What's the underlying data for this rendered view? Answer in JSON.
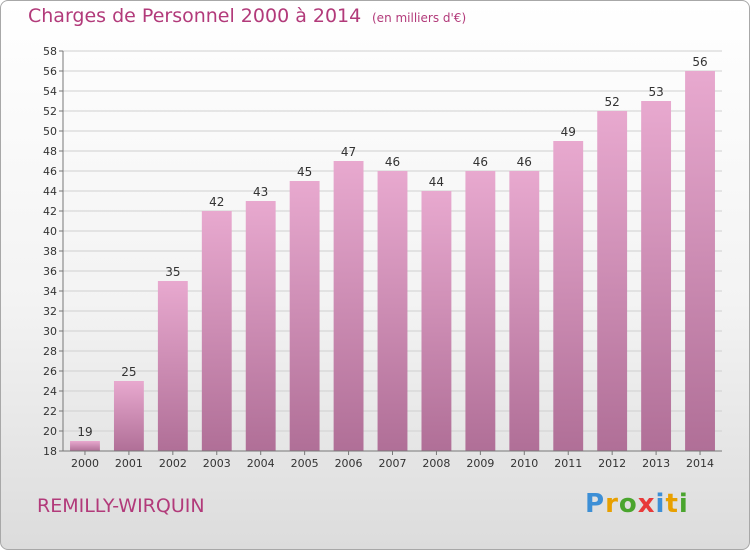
{
  "chart_data": {
    "type": "bar",
    "title": "Charges de Personnel 2000 à 2014",
    "subtitle": "(en milliers d'€)",
    "categories": [
      "2000",
      "2001",
      "2002",
      "2003",
      "2004",
      "2005",
      "2006",
      "2007",
      "2008",
      "2009",
      "2010",
      "2011",
      "2012",
      "2013",
      "2014"
    ],
    "values": [
      19,
      25,
      35,
      42,
      43,
      45,
      47,
      46,
      44,
      46,
      46,
      49,
      52,
      53,
      56
    ],
    "data_labels": [
      "19",
      "25",
      "35",
      "42",
      "43",
      "45",
      "47",
      "46",
      "44",
      "46",
      "46",
      "49",
      "52",
      "53",
      "56"
    ],
    "ylim": [
      18,
      58
    ],
    "yticks": [
      "18",
      "20",
      "22",
      "24",
      "26",
      "28",
      "30",
      "32",
      "34",
      "36",
      "38",
      "40",
      "42",
      "44",
      "46",
      "48",
      "50",
      "52",
      "54",
      "56",
      "58"
    ],
    "xlabel": "",
    "ylabel": "",
    "grid": "horizontal",
    "bar_color": "#d67ab0"
  },
  "commune": "REMILLY-WIRQUIN",
  "logo": {
    "letters": [
      "P",
      "r",
      "o",
      "x",
      "i",
      "t",
      "i"
    ],
    "colors": [
      "#3d8fd6",
      "#e8a000",
      "#4aa52e",
      "#e83a3a",
      "#3d8fd6",
      "#e8a000",
      "#4aa52e"
    ]
  },
  "colors": {
    "title": "#b23a7a",
    "bar_top": "#e8a9cf",
    "bar_bottom": "#b06f97"
  }
}
